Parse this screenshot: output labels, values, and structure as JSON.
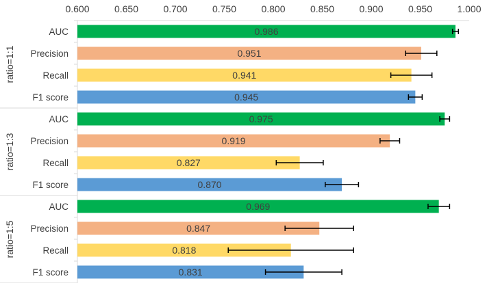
{
  "chart_data": {
    "type": "bar",
    "orientation": "horizontal",
    "title": "",
    "xlabel": "",
    "ylabel": "",
    "xlim": [
      0.6,
      1.0
    ],
    "x_ticks": [
      "0.600",
      "0.650",
      "0.700",
      "0.750",
      "0.800",
      "0.850",
      "0.900",
      "0.950",
      "1.000"
    ],
    "axis_position": "top",
    "colors": {
      "AUC": "#00b050",
      "Precision": "#f4b183",
      "Recall": "#ffd966",
      "F1 score": "#5b9bd5"
    },
    "groups": [
      {
        "name": "ratio=1:1",
        "bars": [
          {
            "metric": "AUC",
            "value": 0.986,
            "label": "0.986",
            "err": 0.003
          },
          {
            "metric": "Precision",
            "value": 0.951,
            "label": "0.951",
            "err": 0.016
          },
          {
            "metric": "Recall",
            "value": 0.941,
            "label": "0.941",
            "err": 0.021
          },
          {
            "metric": "F1 score",
            "value": 0.945,
            "label": "0.945",
            "err": 0.007
          }
        ]
      },
      {
        "name": "ratio=1:3",
        "bars": [
          {
            "metric": "AUC",
            "value": 0.975,
            "label": "0.975",
            "err": 0.005
          },
          {
            "metric": "Precision",
            "value": 0.919,
            "label": "0.919",
            "err": 0.01
          },
          {
            "metric": "Recall",
            "value": 0.827,
            "label": "0.827",
            "err": 0.024
          },
          {
            "metric": "F1 score",
            "value": 0.87,
            "label": "0.870",
            "err": 0.017
          }
        ]
      },
      {
        "name": "ratio=1:5",
        "bars": [
          {
            "metric": "AUC",
            "value": 0.969,
            "label": "0.969",
            "err": 0.011
          },
          {
            "metric": "Precision",
            "value": 0.847,
            "label": "0.847",
            "err": 0.035
          },
          {
            "metric": "Recall",
            "value": 0.818,
            "label": "0.818",
            "err": 0.064
          },
          {
            "metric": "F1 score",
            "value": 0.831,
            "label": "0.831",
            "err": 0.039
          }
        ]
      }
    ]
  }
}
